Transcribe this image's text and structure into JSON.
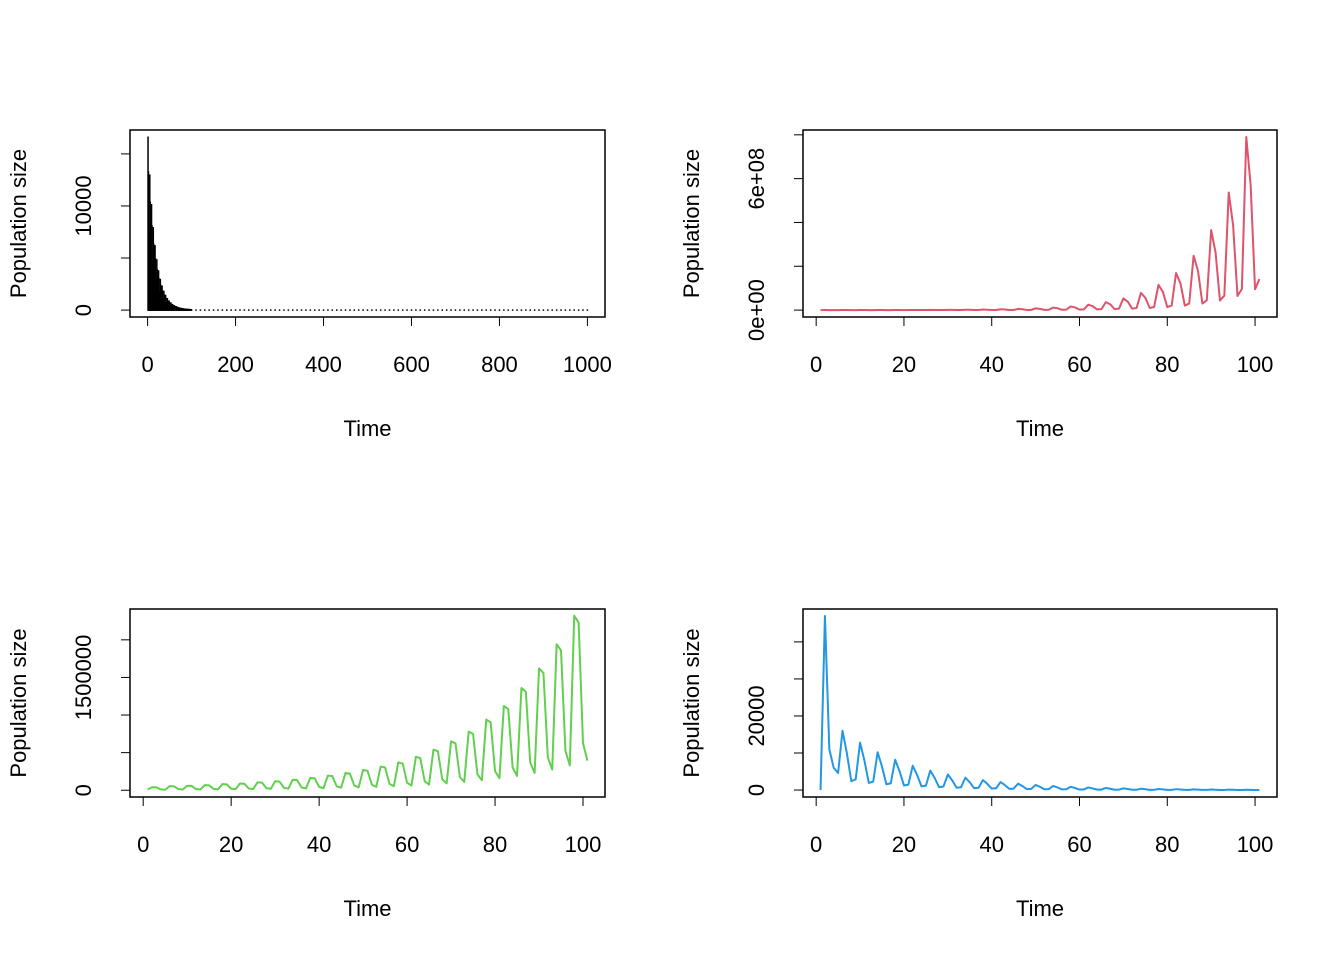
{
  "chart_data": [
    {
      "type": "bar",
      "color": "#000000",
      "xlabel": "Time",
      "ylabel": "Population size",
      "x": [
        1,
        2,
        3,
        4,
        5,
        6,
        7,
        8,
        9,
        10,
        11,
        12,
        13,
        14,
        15,
        16,
        17,
        18,
        19,
        20,
        21,
        22,
        23,
        24,
        25,
        26,
        27,
        28,
        29,
        30,
        31,
        32,
        33,
        34,
        35,
        36,
        37,
        38,
        39,
        40,
        41,
        42,
        43,
        44,
        45,
        46,
        47,
        48,
        49,
        50,
        51,
        52,
        53,
        54,
        55,
        56,
        57,
        58,
        59,
        60,
        61,
        62,
        63,
        64,
        65,
        66,
        67,
        68,
        69,
        70,
        71,
        72,
        73,
        74,
        75,
        76,
        77,
        78,
        79,
        80,
        81,
        82,
        83,
        84,
        85,
        86,
        87,
        88,
        89,
        90,
        91,
        92,
        93,
        94,
        95,
        96,
        97,
        98,
        99,
        100,
        110,
        120,
        130,
        140,
        150,
        160,
        170,
        180,
        190,
        200,
        210,
        220,
        230,
        240,
        250,
        260,
        270,
        280,
        290,
        300,
        310,
        320,
        330,
        340,
        350,
        360,
        370,
        380,
        390,
        400,
        410,
        420,
        430,
        440,
        450,
        460,
        470,
        480,
        490,
        500,
        510,
        520,
        530,
        540,
        550,
        560,
        570,
        580,
        590,
        600,
        610,
        620,
        630,
        640,
        650,
        660,
        670,
        680,
        690,
        700,
        710,
        720,
        730,
        740,
        750,
        760,
        770,
        780,
        790,
        800,
        810,
        820,
        830,
        840,
        850,
        860,
        870,
        880,
        890,
        900,
        910,
        920,
        930,
        940,
        950,
        960,
        970,
        980,
        990,
        1000
      ],
      "values": [
        16600,
        13260,
        6600,
        7580,
        12960,
        10360,
        5150,
        5920,
        10120,
        8090,
        4020,
        4620,
        7900,
        6310,
        3140,
        3610,
        6170,
        4930,
        2450,
        2820,
        4820,
        3850,
        1910,
        2200,
        3760,
        3000,
        1490,
        1720,
        2935,
        2350,
        1170,
        1340,
        2290,
        1830,
        910,
        1050,
        1790,
        1430,
        710,
        820,
        1400,
        1120,
        560,
        640,
        1090,
        870,
        430,
        500,
        850,
        680,
        340,
        390,
        670,
        530,
        260,
        300,
        520,
        420,
        210,
        240,
        410,
        320,
        160,
        190,
        320,
        250,
        130,
        140,
        250,
        200,
        100,
        110,
        190,
        150,
        80,
        90,
        150,
        120,
        60,
        70,
        120,
        90,
        50,
        50,
        90,
        70,
        40,
        40,
        70,
        60,
        30,
        30,
        60,
        45,
        20,
        30,
        40,
        35,
        20,
        20,
        0,
        0,
        0,
        0,
        0,
        0,
        0,
        0,
        0,
        0,
        0,
        0,
        0,
        0,
        0,
        0,
        0,
        0,
        0,
        0,
        0,
        0,
        0,
        0,
        0,
        0,
        0,
        0,
        0,
        0,
        0,
        0,
        0,
        0,
        0,
        0,
        0,
        0,
        0,
        0,
        0,
        0,
        0,
        0,
        0,
        0,
        0,
        0,
        0,
        0,
        0,
        0,
        0,
        0,
        0,
        0,
        0,
        0,
        0,
        0,
        0,
        0,
        0,
        0,
        0,
        0,
        0,
        0,
        0,
        0,
        0,
        0,
        0,
        0,
        0,
        0,
        0,
        0,
        0,
        0,
        0,
        0,
        0,
        0,
        0,
        0,
        0,
        0,
        0,
        0
      ],
      "xlim": [
        -40,
        1040
      ],
      "ylim": [
        -665,
        17295
      ],
      "xticks": [
        0,
        200,
        400,
        600,
        800,
        1000
      ],
      "yticks": [
        0,
        {
          "value": 5000,
          "label": null
        },
        10000,
        {
          "value": 15000,
          "label": null
        }
      ]
    },
    {
      "type": "line",
      "color": "#DF536B",
      "xlabel": "Time",
      "ylabel": "Population size",
      "x": [
        1,
        2,
        3,
        4,
        5,
        6,
        7,
        8,
        9,
        10,
        11,
        12,
        13,
        14,
        15,
        16,
        17,
        18,
        19,
        20,
        21,
        22,
        23,
        24,
        25,
        26,
        27,
        28,
        29,
        30,
        31,
        32,
        33,
        34,
        35,
        36,
        37,
        38,
        39,
        40,
        41,
        42,
        43,
        44,
        45,
        46,
        47,
        48,
        49,
        50,
        51,
        52,
        53,
        54,
        55,
        56,
        57,
        58,
        59,
        60,
        61,
        62,
        63,
        64,
        65,
        66,
        67,
        68,
        69,
        70,
        71,
        72,
        73,
        74,
        75,
        76,
        77,
        78,
        79,
        80,
        81,
        82,
        83,
        84,
        85,
        86,
        87,
        88,
        89,
        90,
        91,
        92,
        93,
        94,
        95,
        96,
        97,
        98,
        99,
        100,
        101
      ],
      "values": [
        10000,
        76000,
        54700,
        9120,
        13700,
        112000,
        80600,
        13400,
        20200,
        164000,
        118000,
        19700,
        29500,
        241000,
        174000,
        28900,
        43400,
        355000,
        256000,
        42600,
        63900,
        522000,
        376000,
        62600,
        94000,
        767000,
        552000,
        92000,
        138000,
        1130000,
        814000,
        136000,
        203000,
        1660000,
        1200000,
        199000,
        299000,
        2440000,
        1760000,
        293000,
        439000,
        3590000,
        2580000,
        431000,
        646000,
        5270000,
        3790000,
        632000,
        949000,
        7750000,
        5580000,
        930000,
        1400000,
        11400000,
        8210000,
        1370000,
        2050000,
        16700000,
        12000000,
        2000000,
        3010000,
        24600000,
        17700000,
        2950000,
        4430000,
        36200000,
        26100000,
        4340000,
        6520000,
        53200000,
        38300000,
        6380000,
        9580000,
        78200000,
        56300000,
        9380000,
        14100000,
        115000000,
        82800000,
        13800000,
        20700000,
        169000000,
        122000000,
        20300000,
        30400000,
        248000000,
        179000000,
        29800000,
        44600000,
        365000000,
        263000000,
        43800000,
        65700000,
        537000000,
        387000000,
        64400000,
        96700000,
        790000000,
        569000000,
        94800000,
        142000000
      ],
      "xlim": [
        -3,
        105
      ],
      "ylim": [
        -31600000,
        822000000
      ],
      "xticks": [
        0,
        20,
        40,
        60,
        80,
        100
      ],
      "yticks": [
        {
          "value": 0,
          "label": "0e+00"
        },
        {
          "value": 200000000,
          "label": null
        },
        {
          "value": 400000000,
          "label": null
        },
        {
          "value": 600000000,
          "label": "6e+08"
        },
        {
          "value": 800000000,
          "label": null
        }
      ]
    },
    {
      "type": "line",
      "color": "#61D04F",
      "xlabel": "Time",
      "ylabel": "Population size",
      "x": [
        1,
        2,
        3,
        4,
        5,
        6,
        7,
        8,
        9,
        10,
        11,
        12,
        13,
        14,
        15,
        16,
        17,
        18,
        19,
        20,
        21,
        22,
        23,
        24,
        25,
        26,
        27,
        28,
        29,
        30,
        31,
        32,
        33,
        34,
        35,
        36,
        37,
        38,
        39,
        40,
        41,
        42,
        43,
        44,
        45,
        46,
        47,
        48,
        49,
        50,
        51,
        52,
        53,
        54,
        55,
        56,
        57,
        58,
        59,
        60,
        61,
        62,
        63,
        64,
        65,
        66,
        67,
        68,
        69,
        70,
        71,
        72,
        73,
        74,
        75,
        76,
        77,
        78,
        79,
        80,
        81,
        82,
        83,
        84,
        85,
        86,
        87,
        88,
        89,
        90,
        91,
        92,
        93,
        94,
        95,
        96,
        97,
        98,
        99,
        100,
        101
      ],
      "values": [
        10000,
        40000,
        38400,
        10800,
        6800,
        54000,
        51800,
        14600,
        9180,
        60000,
        57600,
        16200,
        10200,
        68000,
        65300,
        18400,
        11600,
        81000,
        77800,
        21900,
        13800,
        90000,
        86400,
        24300,
        15300,
        105000,
        101000,
        28400,
        17900,
        120000,
        115000,
        32400,
        20400,
        140000,
        134000,
        37800,
        23800,
        165000,
        158000,
        44600,
        28100,
        195000,
        187000,
        52700,
        33200,
        230000,
        221000,
        62100,
        39100,
        270000,
        259000,
        72900,
        45900,
        315000,
        302000,
        85100,
        53600,
        370000,
        355000,
        99900,
        62900,
        445000,
        427000,
        120000,
        75700,
        540000,
        518000,
        146000,
        91800,
        650000,
        624000,
        176000,
        111000,
        780000,
        749000,
        211000,
        133000,
        940000,
        902000,
        254000,
        160000,
        1120000,
        1080000,
        302000,
        190000,
        1360000,
        1310000,
        367000,
        231000,
        1620000,
        1560000,
        437000,
        275000,
        1940000,
        1860000,
        524000,
        330000,
        2320000,
        2230000,
        626000,
        394000
      ],
      "xlim": [
        -3,
        105
      ],
      "ylim": [
        -90000,
        2410000
      ],
      "xticks": [
        0,
        20,
        40,
        60,
        80,
        100
      ],
      "yticks": [
        0,
        {
          "value": 500000,
          "label": null
        },
        {
          "value": 1000000,
          "label": null
        },
        1500000,
        {
          "value": 2000000,
          "label": null
        }
      ]
    },
    {
      "type": "line",
      "color": "#2297E6",
      "xlabel": "Time",
      "ylabel": "Population size",
      "x": [
        1,
        2,
        3,
        4,
        5,
        6,
        7,
        8,
        9,
        10,
        11,
        12,
        13,
        14,
        15,
        16,
        17,
        18,
        19,
        20,
        21,
        22,
        23,
        24,
        25,
        26,
        27,
        28,
        29,
        30,
        31,
        32,
        33,
        34,
        35,
        36,
        37,
        38,
        39,
        40,
        41,
        42,
        43,
        44,
        45,
        46,
        47,
        48,
        49,
        50,
        51,
        52,
        53,
        54,
        55,
        56,
        57,
        58,
        59,
        60,
        61,
        62,
        63,
        64,
        65,
        66,
        67,
        68,
        69,
        70,
        71,
        72,
        73,
        74,
        75,
        76,
        77,
        78,
        79,
        80,
        81,
        82,
        83,
        84,
        85,
        86,
        87,
        88,
        89,
        90,
        91,
        92,
        93,
        94,
        95,
        96,
        97,
        98,
        99,
        100,
        101
      ],
      "values": [
        0,
        47000,
        11000,
        6000,
        4600,
        16000,
        9920,
        2400,
        2880,
        12800,
        7940,
        1920,
        2300,
        10200,
        6350,
        1540,
        1840,
        8190,
        5080,
        1230,
        1470,
        6550,
        4060,
        983,
        1180,
        5240,
        3250,
        786,
        943,
        4190,
        2600,
        629,
        754,
        3350,
        2080,
        503,
        603,
        2680,
        1660,
        402,
        482,
        2150,
        1330,
        323,
        387,
        1720,
        1070,
        258,
        310,
        1370,
        849,
        206,
        247,
        1100,
        682,
        165,
        198,
        880,
        546,
        132,
        158,
        700,
        434,
        105,
        126,
        560,
        347,
        84,
        101,
        450,
        279,
        68,
        81,
        360,
        223,
        54,
        65,
        290,
        180,
        44,
        52,
        230,
        143,
        35,
        41,
        185,
        115,
        28,
        33,
        150,
        93,
        23,
        27,
        120,
        74,
        18,
        22,
        95,
        59,
        14,
        17
      ],
      "xlim": [
        -3,
        105
      ],
      "ylim": [
        -1880,
        48880
      ],
      "xticks": [
        0,
        20,
        40,
        60,
        80,
        100
      ],
      "yticks": [
        0,
        {
          "value": 10000,
          "label": null
        },
        20000,
        {
          "value": 30000,
          "label": null
        },
        {
          "value": 40000,
          "label": null
        }
      ]
    }
  ]
}
